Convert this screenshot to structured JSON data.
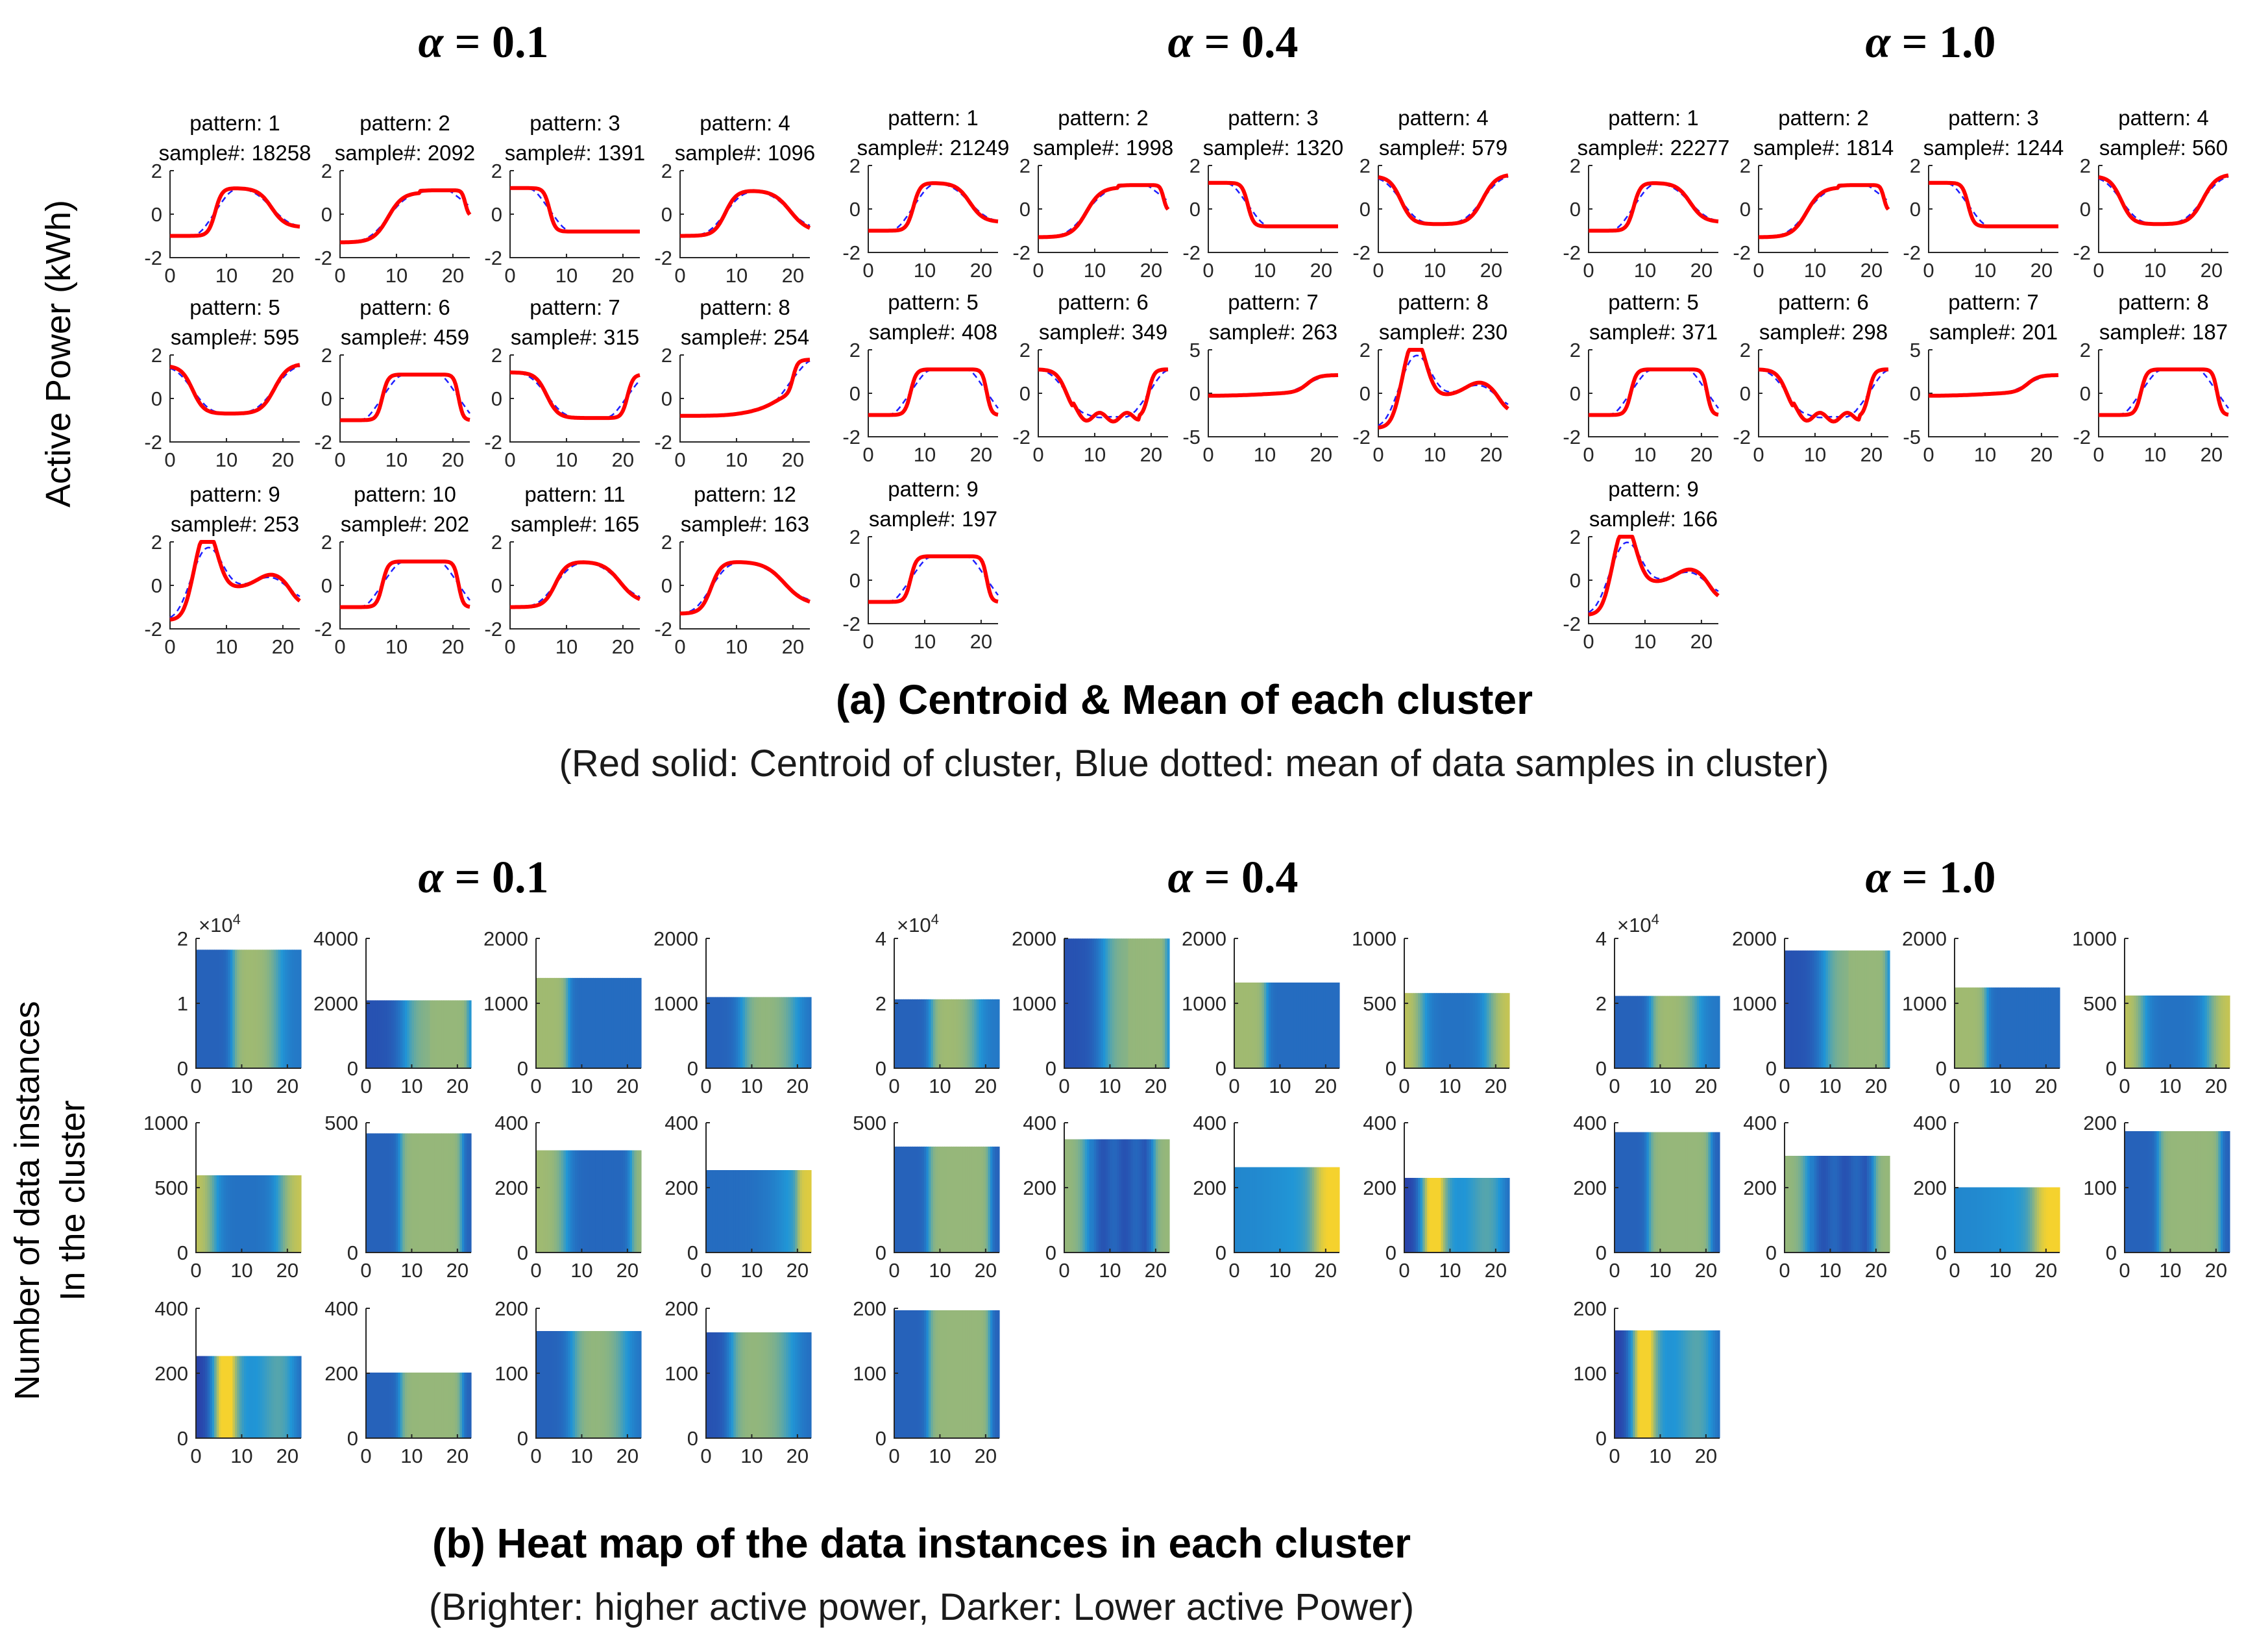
{
  "figure": {
    "part_a": {
      "caption": "(a) Centroid & Mean of each cluster",
      "subcaption": "(Red solid: Centroid of cluster, Blue dotted: mean of data samples in cluster)",
      "ylabel": "Active Power (kWh)"
    },
    "part_b": {
      "caption": "(b) Heat map of the data instances in each cluster",
      "subcaption": "(Brighter: higher active power, Darker: Lower active Power)",
      "ylabel_line1": "Number of data instances",
      "ylabel_line2": "In the cluster"
    },
    "colors": {
      "centroid": "#ff0000",
      "mean": "#1f1fff",
      "heat_dark": "#2b2d9e",
      "heat_mid": "#2196d6",
      "heat_bright": "#f5d22e",
      "axis": "#262626"
    }
  },
  "chart_data": [
    {
      "type": "line",
      "panel": "(a) Centroid & Mean",
      "alpha_label": "α = 0.1",
      "x_ticks": [
        0,
        10,
        20
      ],
      "patterns": [
        {
          "title": "pattern: 1",
          "samples": "sample#: 18258",
          "ylim": [
            -2,
            2
          ],
          "yticks": [
            -2,
            0,
            2
          ],
          "shape": 1
        },
        {
          "title": "pattern: 2",
          "samples": "sample#: 2092",
          "ylim": [
            -2,
            2
          ],
          "yticks": [
            -2,
            0,
            2
          ],
          "shape": 2
        },
        {
          "title": "pattern: 3",
          "samples": "sample#: 1391",
          "ylim": [
            -2,
            2
          ],
          "yticks": [
            -2,
            0,
            2
          ],
          "shape": 3
        },
        {
          "title": "pattern: 4",
          "samples": "sample#: 1096",
          "ylim": [
            -2,
            2
          ],
          "yticks": [
            -2,
            0,
            2
          ],
          "shape": 4
        },
        {
          "title": "pattern: 5",
          "samples": "sample#: 595",
          "ylim": [
            -2,
            2
          ],
          "yticks": [
            -2,
            0,
            2
          ],
          "shape": 5
        },
        {
          "title": "pattern: 6",
          "samples": "sample#: 459",
          "ylim": [
            -2,
            2
          ],
          "yticks": [
            -2,
            0,
            2
          ],
          "shape": 6
        },
        {
          "title": "pattern: 7",
          "samples": "sample#: 315",
          "ylim": [
            -2,
            2
          ],
          "yticks": [
            -2,
            0,
            2
          ],
          "shape": 7
        },
        {
          "title": "pattern: 8",
          "samples": "sample#: 254",
          "ylim": [
            -2,
            2
          ],
          "yticks": [
            -2,
            0,
            2
          ],
          "shape": 8
        },
        {
          "title": "pattern: 9",
          "samples": "sample#: 253",
          "ylim": [
            -2,
            2
          ],
          "yticks": [
            -2,
            0,
            2
          ],
          "shape": 9
        },
        {
          "title": "pattern: 10",
          "samples": "sample#: 202",
          "ylim": [
            -2,
            2
          ],
          "yticks": [
            -2,
            0,
            2
          ],
          "shape": 6
        },
        {
          "title": "pattern: 11",
          "samples": "sample#: 165",
          "ylim": [
            -2,
            2
          ],
          "yticks": [
            -2,
            0,
            2
          ],
          "shape": 4
        },
        {
          "title": "pattern: 12",
          "samples": "sample#: 163",
          "ylim": [
            -2,
            2
          ],
          "yticks": [
            -2,
            0,
            2
          ],
          "shape": 12
        }
      ]
    },
    {
      "type": "line",
      "panel": "(a) Centroid & Mean",
      "alpha_label": "α = 0.4",
      "x_ticks": [
        0,
        10,
        20
      ],
      "patterns": [
        {
          "title": "pattern: 1",
          "samples": "sample#: 21249",
          "ylim": [
            -2,
            2
          ],
          "yticks": [
            -2,
            0,
            2
          ],
          "shape": 1
        },
        {
          "title": "pattern: 2",
          "samples": "sample#: 1998",
          "ylim": [
            -2,
            2
          ],
          "yticks": [
            -2,
            0,
            2
          ],
          "shape": 2
        },
        {
          "title": "pattern: 3",
          "samples": "sample#: 1320",
          "ylim": [
            -2,
            2
          ],
          "yticks": [
            -2,
            0,
            2
          ],
          "shape": 3
        },
        {
          "title": "pattern: 4",
          "samples": "sample#: 579",
          "ylim": [
            -2,
            2
          ],
          "yticks": [
            -2,
            0,
            2
          ],
          "shape": 5
        },
        {
          "title": "pattern: 5",
          "samples": "sample#: 408",
          "ylim": [
            -2,
            2
          ],
          "yticks": [
            -2,
            0,
            2
          ],
          "shape": 6
        },
        {
          "title": "pattern: 6",
          "samples": "sample#: 349",
          "ylim": [
            -2,
            2
          ],
          "yticks": [
            -2,
            0,
            2
          ],
          "shape": 16
        },
        {
          "title": "pattern: 7",
          "samples": "sample#: 263",
          "ylim": [
            -5,
            5
          ],
          "yticks": [
            -5,
            0,
            5
          ],
          "shape": 17
        },
        {
          "title": "pattern: 8",
          "samples": "sample#: 230",
          "ylim": [
            -2,
            2
          ],
          "yticks": [
            -2,
            0,
            2
          ],
          "shape": 9
        },
        {
          "title": "pattern: 9",
          "samples": "sample#: 197",
          "ylim": [
            -2,
            2
          ],
          "yticks": [
            -2,
            0,
            2
          ],
          "shape": 6
        }
      ]
    },
    {
      "type": "line",
      "panel": "(a) Centroid & Mean",
      "alpha_label": "α = 1.0",
      "x_ticks": [
        0,
        10,
        20
      ],
      "patterns": [
        {
          "title": "pattern: 1",
          "samples": "sample#: 22277",
          "ylim": [
            -2,
            2
          ],
          "yticks": [
            -2,
            0,
            2
          ],
          "shape": 1
        },
        {
          "title": "pattern: 2",
          "samples": "sample#: 1814",
          "ylim": [
            -2,
            2
          ],
          "yticks": [
            -2,
            0,
            2
          ],
          "shape": 2
        },
        {
          "title": "pattern: 3",
          "samples": "sample#: 1244",
          "ylim": [
            -2,
            2
          ],
          "yticks": [
            -2,
            0,
            2
          ],
          "shape": 3
        },
        {
          "title": "pattern: 4",
          "samples": "sample#: 560",
          "ylim": [
            -2,
            2
          ],
          "yticks": [
            -2,
            0,
            2
          ],
          "shape": 5
        },
        {
          "title": "pattern: 5",
          "samples": "sample#: 371",
          "ylim": [
            -2,
            2
          ],
          "yticks": [
            -2,
            0,
            2
          ],
          "shape": 6
        },
        {
          "title": "pattern: 6",
          "samples": "sample#: 298",
          "ylim": [
            -2,
            2
          ],
          "yticks": [
            -2,
            0,
            2
          ],
          "shape": 16
        },
        {
          "title": "pattern: 7",
          "samples": "sample#: 201",
          "ylim": [
            -5,
            5
          ],
          "yticks": [
            -5,
            0,
            5
          ],
          "shape": 17
        },
        {
          "title": "pattern: 8",
          "samples": "sample#: 187",
          "ylim": [
            -2,
            2
          ],
          "yticks": [
            -2,
            0,
            2
          ],
          "shape": 6
        },
        {
          "title": "pattern: 9",
          "samples": "sample#: 166",
          "ylim": [
            -2,
            2
          ],
          "yticks": [
            -2,
            0,
            2
          ],
          "shape": 9
        }
      ]
    },
    {
      "type": "heatmap",
      "panel": "(b) Heat map",
      "alpha_label": "α = 0.1",
      "x_ticks": [
        0,
        10,
        20
      ],
      "maps": [
        {
          "count": 18258,
          "ymax": 20000,
          "yticks": [
            "0",
            "1",
            "2"
          ],
          "exponent": "×10",
          "exponent_power": "4",
          "shape": 1
        },
        {
          "count": 2092,
          "ymax": 4000,
          "yticks": [
            "0",
            "2000",
            "4000"
          ],
          "shape": 2
        },
        {
          "count": 1391,
          "ymax": 2000,
          "yticks": [
            "0",
            "1000",
            "2000"
          ],
          "shape": 3
        },
        {
          "count": 1096,
          "ymax": 2000,
          "yticks": [
            "0",
            "1000",
            "2000"
          ],
          "shape": 4
        },
        {
          "count": 595,
          "ymax": 1000,
          "yticks": [
            "0",
            "500",
            "1000"
          ],
          "shape": 5
        },
        {
          "count": 459,
          "ymax": 500,
          "yticks": [
            "0",
            "500"
          ],
          "shape": 6
        },
        {
          "count": 315,
          "ymax": 400,
          "yticks": [
            "0",
            "200",
            "400"
          ],
          "shape": 7
        },
        {
          "count": 254,
          "ymax": 400,
          "yticks": [
            "0",
            "200",
            "400"
          ],
          "shape": 8
        },
        {
          "count": 253,
          "ymax": 400,
          "yticks": [
            "0",
            "200",
            "400"
          ],
          "shape": 9
        },
        {
          "count": 202,
          "ymax": 400,
          "yticks": [
            "0",
            "200",
            "400"
          ],
          "shape": 6
        },
        {
          "count": 165,
          "ymax": 200,
          "yticks": [
            "0",
            "100",
            "200"
          ],
          "shape": 4
        },
        {
          "count": 163,
          "ymax": 200,
          "yticks": [
            "0",
            "100",
            "200"
          ],
          "shape": 12
        }
      ]
    },
    {
      "type": "heatmap",
      "panel": "(b) Heat map",
      "alpha_label": "α = 0.4",
      "x_ticks": [
        0,
        10,
        20
      ],
      "maps": [
        {
          "count": 21249,
          "ymax": 40000,
          "yticks": [
            "0",
            "2",
            "4"
          ],
          "exponent": "×10",
          "exponent_power": "4",
          "shape": 1
        },
        {
          "count": 1998,
          "ymax": 2000,
          "yticks": [
            "0",
            "1000",
            "2000"
          ],
          "shape": 2
        },
        {
          "count": 1320,
          "ymax": 2000,
          "yticks": [
            "0",
            "1000",
            "2000"
          ],
          "shape": 3
        },
        {
          "count": 579,
          "ymax": 1000,
          "yticks": [
            "0",
            "500",
            "1000"
          ],
          "shape": 5
        },
        {
          "count": 408,
          "ymax": 500,
          "yticks": [
            "0",
            "500"
          ],
          "shape": 6
        },
        {
          "count": 349,
          "ymax": 400,
          "yticks": [
            "0",
            "200",
            "400"
          ],
          "shape": 16
        },
        {
          "count": 263,
          "ymax": 400,
          "yticks": [
            "0",
            "200",
            "400"
          ],
          "shape": 17
        },
        {
          "count": 230,
          "ymax": 400,
          "yticks": [
            "0",
            "200",
            "400"
          ],
          "shape": 9
        },
        {
          "count": 197,
          "ymax": 200,
          "yticks": [
            "0",
            "100",
            "200"
          ],
          "shape": 6
        }
      ]
    },
    {
      "type": "heatmap",
      "panel": "(b) Heat map",
      "alpha_label": "α = 1.0",
      "x_ticks": [
        0,
        10,
        20
      ],
      "maps": [
        {
          "count": 22277,
          "ymax": 40000,
          "yticks": [
            "0",
            "2",
            "4"
          ],
          "exponent": "×10",
          "exponent_power": "4",
          "shape": 1
        },
        {
          "count": 1814,
          "ymax": 2000,
          "yticks": [
            "0",
            "1000",
            "2000"
          ],
          "shape": 2
        },
        {
          "count": 1244,
          "ymax": 2000,
          "yticks": [
            "0",
            "1000",
            "2000"
          ],
          "shape": 3
        },
        {
          "count": 560,
          "ymax": 1000,
          "yticks": [
            "0",
            "500",
            "1000"
          ],
          "shape": 5
        },
        {
          "count": 371,
          "ymax": 400,
          "yticks": [
            "0",
            "200",
            "400"
          ],
          "shape": 6
        },
        {
          "count": 298,
          "ymax": 400,
          "yticks": [
            "0",
            "200",
            "400"
          ],
          "shape": 16
        },
        {
          "count": 201,
          "ymax": 400,
          "yticks": [
            "0",
            "200",
            "400"
          ],
          "shape": 17
        },
        {
          "count": 187,
          "ymax": 200,
          "yticks": [
            "0",
            "100",
            "200"
          ],
          "shape": 6
        },
        {
          "count": 166,
          "ymax": 200,
          "yticks": [
            "0",
            "100",
            "200"
          ],
          "shape": 9
        }
      ]
    }
  ]
}
